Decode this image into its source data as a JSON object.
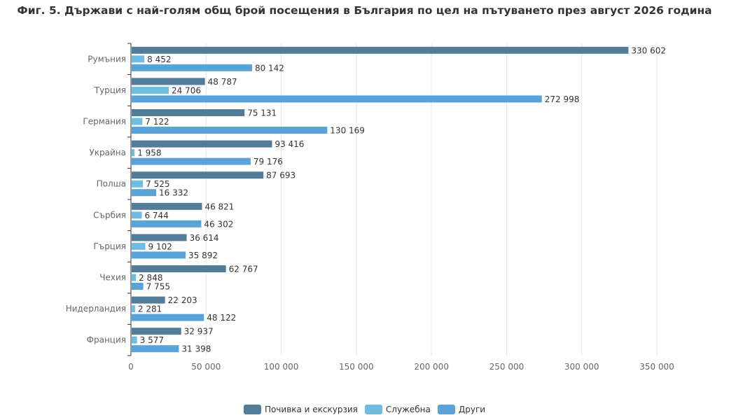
{
  "chart_data": {
    "type": "bar",
    "orientation": "horizontal",
    "title": "Фиг. 5. Държави с най-голям общ брой посещения в България по цел на пътуването през август 2026 година",
    "categories": [
      "Румъния",
      "Турция",
      "Германия",
      "Украйна",
      "Полша",
      "Сърбия",
      "Гърция",
      "Чехия",
      "Нидерландия",
      "Франция"
    ],
    "series": [
      {
        "name": "Почивка и екскурзия",
        "color": "#527c98",
        "values": [
          330602,
          48787,
          75131,
          93416,
          87693,
          46821,
          36614,
          62767,
          22203,
          32937
        ],
        "labels": [
          "330 602",
          "48 787",
          "75 131",
          "93 416",
          "87 693",
          "46 821",
          "36 614",
          "62 767",
          "22 203",
          "32 937"
        ]
      },
      {
        "name": "Служебна",
        "color": "#6fbde0",
        "values": [
          8452,
          24706,
          7122,
          1958,
          7525,
          6744,
          9102,
          2848,
          2281,
          3577
        ],
        "labels": [
          "8 452",
          "24 706",
          "7 122",
          "1 958",
          "7 525",
          "6 744",
          "9 102",
          "2 848",
          "2 281",
          "3 577"
        ]
      },
      {
        "name": "Други",
        "color": "#59a3d8",
        "values": [
          80142,
          272998,
          130169,
          79176,
          16332,
          46302,
          35892,
          7755,
          48122,
          31398
        ],
        "labels": [
          "80 142",
          "272 998",
          "130 169",
          "79 176",
          "16 332",
          "46 302",
          "35 892",
          "7 755",
          "48 122",
          "31 398"
        ]
      }
    ],
    "xlim": [
      0,
      350000
    ],
    "xticks": [
      0,
      50000,
      100000,
      150000,
      200000,
      250000,
      300000,
      350000
    ],
    "xtick_labels": [
      "0",
      "50 000",
      "100 000",
      "150 000",
      "200 000",
      "250 000",
      "300 000",
      "350 000"
    ],
    "grid": "vertical",
    "legend_position": "bottom"
  }
}
